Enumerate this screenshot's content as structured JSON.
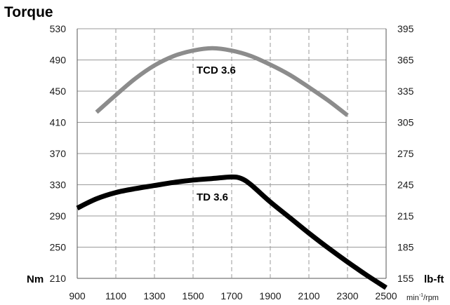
{
  "chart_data": {
    "type": "line",
    "title": "Torque",
    "y_unit_left": "Nm",
    "y_unit_right": "lb-ft",
    "x_unit_main": "min",
    "x_unit_sup": "-1",
    "x_unit_tail": "/rpm",
    "xlim": [
      900,
      2500
    ],
    "ylim": [
      210,
      530
    ],
    "y2lim": [
      155,
      395
    ],
    "x_ticks": [
      "900",
      "1100",
      "1300",
      "1500",
      "1700",
      "1900",
      "2100",
      "2300",
      "2500"
    ],
    "y_ticks": [
      "530",
      "490",
      "450",
      "410",
      "370",
      "330",
      "290",
      "250",
      "210"
    ],
    "y2_ticks": [
      "395",
      "365",
      "335",
      "305",
      "275",
      "245",
      "215",
      "185",
      "155"
    ],
    "grid": true,
    "series": [
      {
        "name": "TCD 3.6",
        "color": "#8c8c8c",
        "x": [
          1000,
          1100,
          1200,
          1300,
          1400,
          1500,
          1600,
          1700,
          1800,
          1900,
          2000,
          2100,
          2200,
          2300
        ],
        "y": [
          423,
          445,
          466,
          483,
          495,
          502,
          505,
          502,
          495,
          484,
          471,
          455,
          438,
          419
        ]
      },
      {
        "name": "TD 3.6",
        "color": "#000000",
        "x": [
          900,
          1000,
          1100,
          1200,
          1300,
          1400,
          1500,
          1600,
          1700,
          1750,
          1800,
          1900,
          2000,
          2100,
          2200,
          2300,
          2400,
          2500
        ],
        "y": [
          300,
          312,
          320,
          325,
          329,
          333,
          336,
          338,
          340,
          338,
          330,
          308,
          288,
          268,
          249,
          231,
          214,
          198
        ]
      }
    ]
  }
}
